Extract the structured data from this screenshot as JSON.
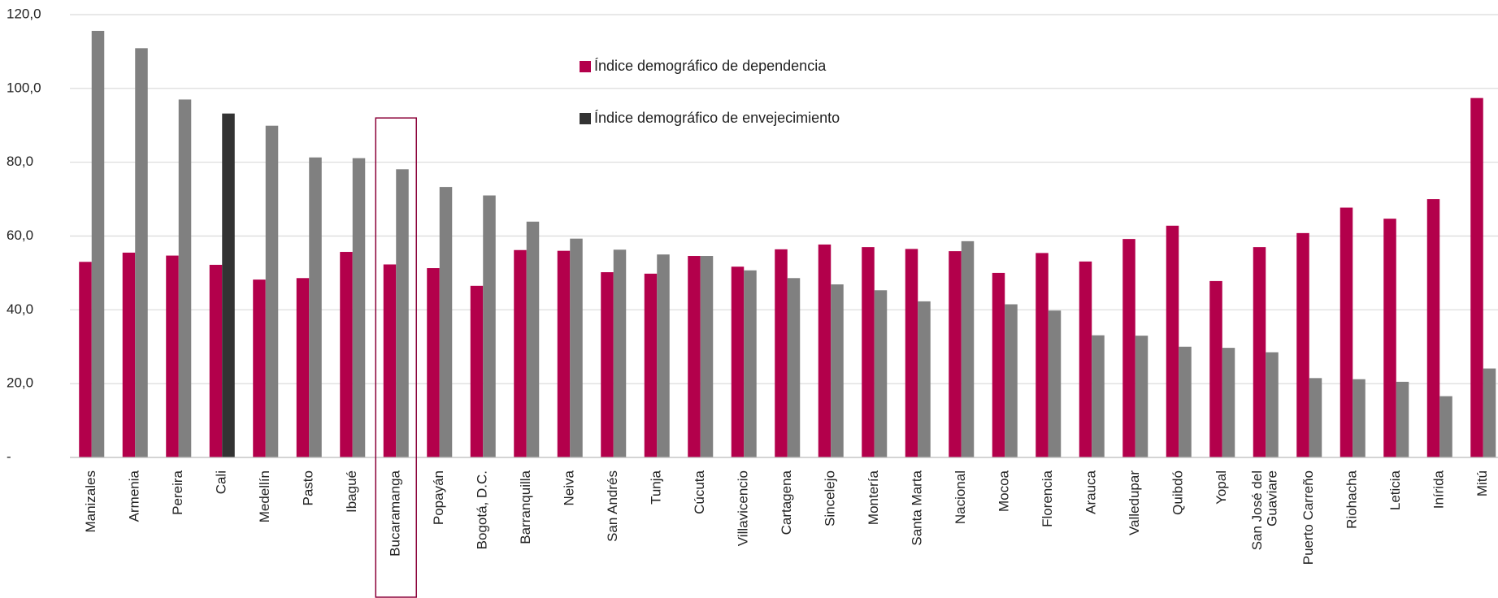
{
  "chart_data": {
    "type": "bar",
    "categories": [
      "Manizales",
      "Armenia",
      "Pereira",
      "Cali",
      "Medellín",
      "Pasto",
      "Ibagué",
      "Bucaramanga",
      "Popayán",
      "Bogotá, D.C.",
      "Barranquilla",
      "Neiva",
      "San Andrés",
      "Tunja",
      "Cúcuta",
      "Villavicencio",
      "Cartagena",
      "Sincelejo",
      "Montería",
      "Santa Marta",
      "Nacional",
      "Mocoa",
      "Florencia",
      "Arauca",
      "Valledupar",
      "Quibdó",
      "Yopal",
      "San José del\nGuaviare",
      "Puerto Carreño",
      "Riohacha",
      "Leticia",
      "Inírida",
      "Mitú"
    ],
    "series": [
      {
        "name": "Índice demográfico de dependencia",
        "color": "#b3004b",
        "values": [
          53.0,
          55.5,
          54.7,
          52.2,
          48.2,
          48.6,
          55.7,
          52.3,
          51.3,
          46.5,
          56.2,
          56.0,
          50.2,
          49.8,
          54.6,
          51.7,
          56.4,
          57.7,
          57.0,
          56.5,
          55.9,
          50.0,
          55.4,
          53.1,
          59.2,
          62.8,
          47.8,
          57.0,
          60.8,
          67.7,
          64.7,
          70.0,
          97.4
        ]
      },
      {
        "name": "Índice demográfico de envejecimiento",
        "color": "#333333",
        "bar_colors": [
          "#808080",
          "#808080",
          "#808080",
          "#333333",
          "#808080",
          "#808080",
          "#808080",
          "#808080",
          "#808080",
          "#808080",
          "#808080",
          "#808080",
          "#808080",
          "#808080",
          "#808080",
          "#808080",
          "#808080",
          "#808080",
          "#808080",
          "#808080",
          "#808080",
          "#808080",
          "#808080",
          "#808080",
          "#808080",
          "#808080",
          "#808080",
          "#808080",
          "#808080",
          "#808080",
          "#808080",
          "#808080",
          "#808080"
        ],
        "values": [
          115.6,
          110.9,
          97.0,
          93.2,
          89.9,
          81.3,
          81.1,
          78.1,
          73.3,
          71.0,
          63.9,
          59.3,
          56.3,
          55.0,
          54.6,
          50.7,
          48.6,
          46.9,
          45.3,
          42.3,
          58.6,
          41.5,
          39.8,
          33.1,
          33.0,
          30.0,
          29.7,
          28.5,
          21.5,
          21.2,
          20.5,
          16.6,
          24.1
        ]
      }
    ],
    "ylim": [
      0,
      120
    ],
    "yticks": [
      {
        "value": 0,
        "label": "-"
      },
      {
        "value": 20,
        "label": "20,0"
      },
      {
        "value": 40,
        "label": "40,0"
      },
      {
        "value": 60,
        "label": "60,0"
      },
      {
        "value": 80,
        "label": "80,0"
      },
      {
        "value": 100,
        "label": "100,0"
      },
      {
        "value": 120,
        "label": "120,0"
      }
    ],
    "grid": true,
    "highlight_index": 7,
    "highlight_color": "#8b0038"
  }
}
